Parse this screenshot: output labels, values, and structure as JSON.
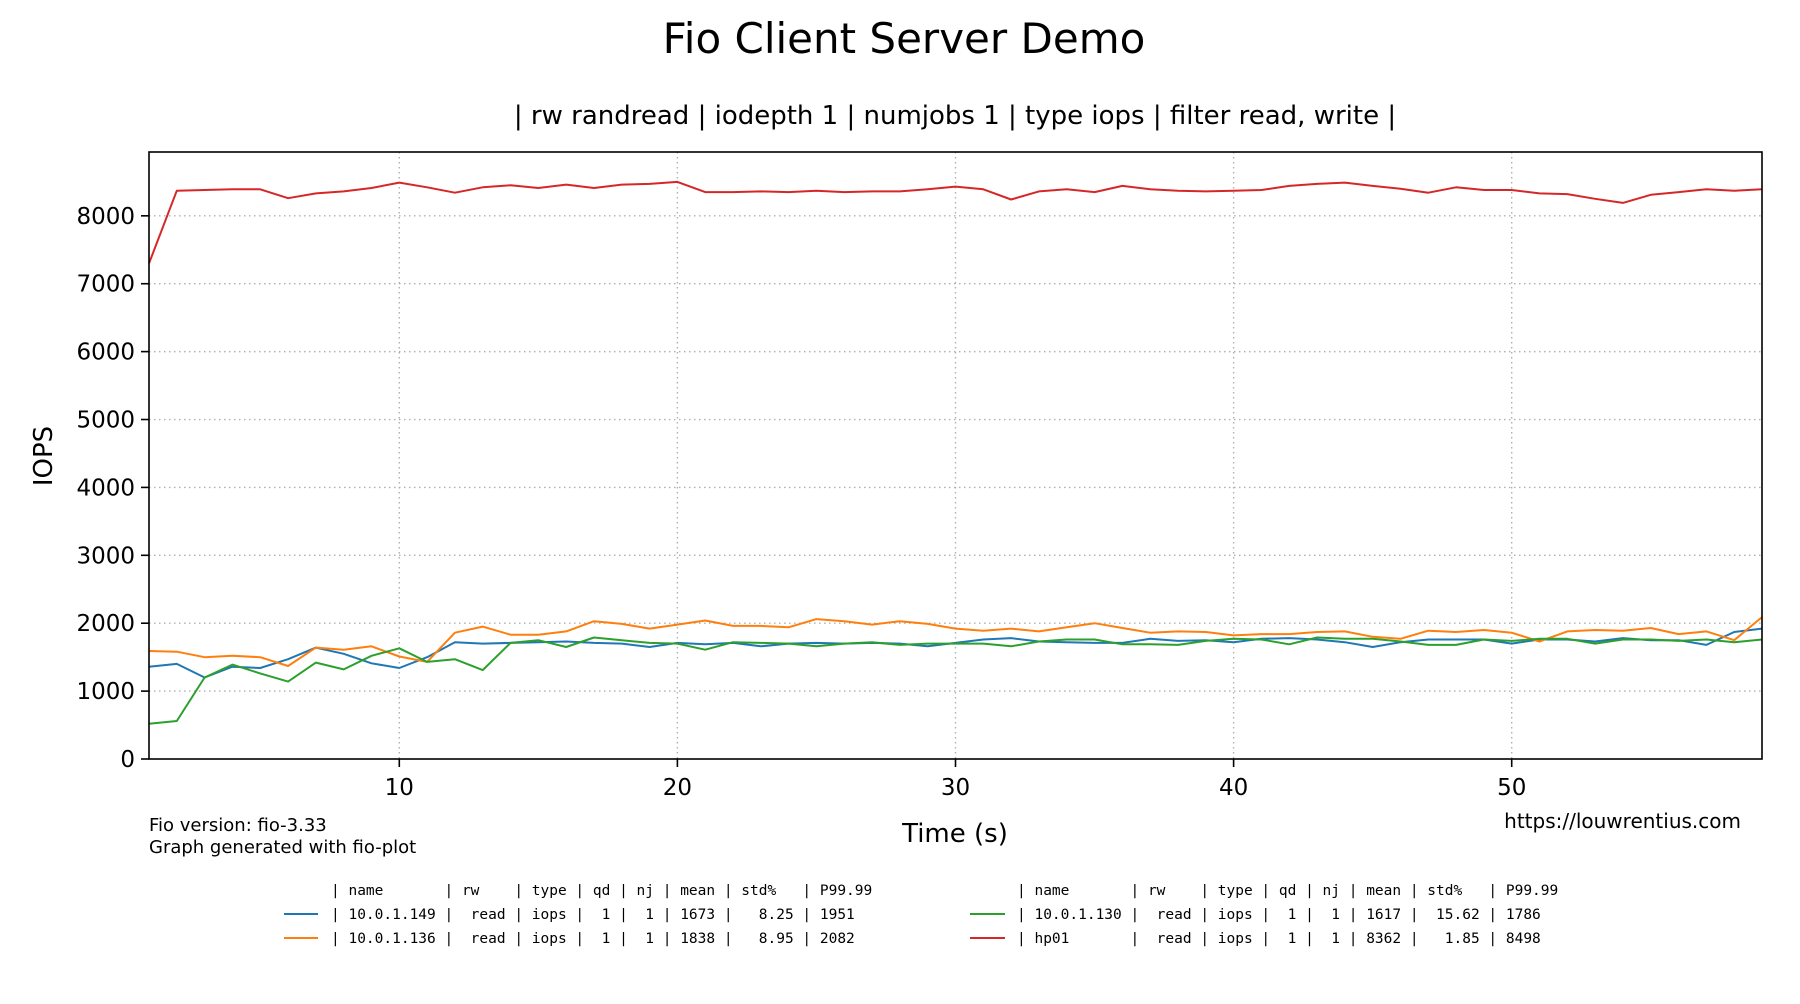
{
  "chart_data": {
    "type": "line",
    "title": "Fio Client Server Demo",
    "subtitle": "| rw randread | iodepth 1 | numjobs 1 | type iops | filter read, write |",
    "xlabel": "Time (s)",
    "ylabel": "IOPS",
    "xlim": [
      1,
      59
    ],
    "ylim": [
      0,
      8940
    ],
    "xticks": [
      10,
      20,
      30,
      40,
      50
    ],
    "yticks": [
      0,
      1000,
      2000,
      3000,
      4000,
      5000,
      6000,
      7000,
      8000
    ],
    "grid": true,
    "grid_style": "dotted",
    "legend_placement": "bottom",
    "x": [
      1,
      2,
      3,
      4,
      5,
      6,
      7,
      8,
      9,
      10,
      11,
      12,
      13,
      14,
      15,
      16,
      17,
      18,
      19,
      20,
      21,
      22,
      23,
      24,
      25,
      26,
      27,
      28,
      29,
      30,
      31,
      32,
      33,
      34,
      35,
      36,
      37,
      38,
      39,
      40,
      41,
      42,
      43,
      44,
      45,
      46,
      47,
      48,
      49,
      50,
      51,
      52,
      53,
      54,
      55,
      56,
      57,
      58,
      59
    ],
    "series": [
      {
        "name": "10.0.1.149",
        "color": "#1f77b4",
        "values": [
          1360,
          1400,
          1200,
          1360,
          1340,
          1470,
          1640,
          1550,
          1410,
          1340,
          1500,
          1720,
          1700,
          1710,
          1720,
          1730,
          1710,
          1700,
          1650,
          1710,
          1690,
          1710,
          1660,
          1700,
          1710,
          1700,
          1710,
          1700,
          1660,
          1710,
          1760,
          1780,
          1730,
          1720,
          1710,
          1710,
          1770,
          1740,
          1750,
          1720,
          1770,
          1780,
          1760,
          1720,
          1650,
          1720,
          1760,
          1760,
          1760,
          1700,
          1760,
          1760,
          1730,
          1780,
          1750,
          1750,
          1680,
          1870,
          1920
        ]
      },
      {
        "name": "10.0.1.136",
        "color": "#ff7f0e",
        "values": [
          1590,
          1580,
          1500,
          1520,
          1500,
          1370,
          1640,
          1610,
          1660,
          1510,
          1430,
          1860,
          1950,
          1830,
          1830,
          1880,
          2030,
          1990,
          1920,
          1980,
          2040,
          1960,
          1960,
          1940,
          2060,
          2030,
          1980,
          2030,
          1990,
          1920,
          1890,
          1920,
          1880,
          1940,
          2000,
          1930,
          1860,
          1880,
          1870,
          1820,
          1840,
          1840,
          1870,
          1880,
          1800,
          1770,
          1890,
          1870,
          1900,
          1860,
          1730,
          1880,
          1900,
          1890,
          1930,
          1840,
          1880,
          1750,
          2090
        ]
      },
      {
        "name": "10.0.1.130",
        "color": "#2ca02c",
        "values": [
          520,
          560,
          1200,
          1390,
          1260,
          1140,
          1420,
          1320,
          1520,
          1630,
          1430,
          1470,
          1310,
          1710,
          1750,
          1650,
          1790,
          1750,
          1710,
          1700,
          1610,
          1720,
          1710,
          1700,
          1660,
          1700,
          1720,
          1680,
          1700,
          1700,
          1700,
          1660,
          1730,
          1760,
          1760,
          1690,
          1690,
          1680,
          1740,
          1770,
          1760,
          1690,
          1790,
          1770,
          1770,
          1730,
          1680,
          1680,
          1760,
          1740,
          1770,
          1770,
          1700,
          1760,
          1760,
          1740,
          1760,
          1720,
          1760
        ]
      },
      {
        "name": "hp01",
        "color": "#d62728",
        "values": [
          7300,
          8370,
          8380,
          8390,
          8390,
          8260,
          8330,
          8360,
          8410,
          8490,
          8420,
          8340,
          8420,
          8450,
          8410,
          8460,
          8410,
          8460,
          8470,
          8500,
          8350,
          8350,
          8360,
          8350,
          8370,
          8350,
          8360,
          8360,
          8390,
          8430,
          8390,
          8240,
          8360,
          8390,
          8350,
          8440,
          8390,
          8370,
          8360,
          8370,
          8380,
          8440,
          8470,
          8490,
          8440,
          8400,
          8340,
          8420,
          8380,
          8380,
          8330,
          8320,
          8250,
          8190,
          8310,
          8350,
          8390,
          8370,
          8390
        ]
      }
    ]
  },
  "footer": {
    "version": "Fio version: fio-3.33",
    "generated": "Graph generated with fio-plot",
    "url": "https://louwrentius.com"
  },
  "legend": {
    "header": "| name       | rw    | type | qd | nj | mean | std%   | P99.99",
    "rows": [
      "| 10.0.1.149 |  read | iops |  1 |  1 | 1673 |   8.25 | 1951",
      "| 10.0.1.136 |  read | iops |  1 |  1 | 1838 |   8.95 | 2082",
      "| 10.0.1.130 |  read | iops |  1 |  1 | 1617 |  15.62 | 1786",
      "| hp01       |  read | iops |  1 |  1 | 8362 |   1.85 | 8498"
    ]
  }
}
